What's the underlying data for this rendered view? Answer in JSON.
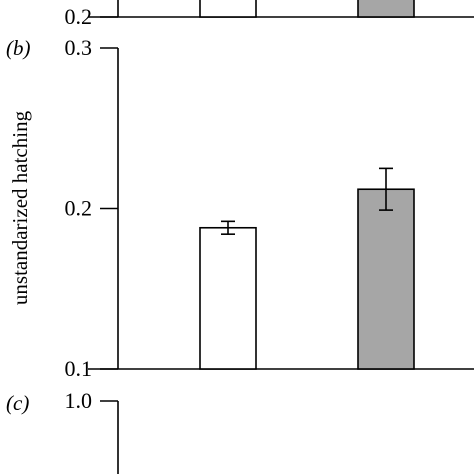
{
  "chart_data": [
    {
      "panel": "a",
      "type": "bar",
      "partial": true,
      "yticks": [
        0.2
      ],
      "tick_labels": [
        "0.2"
      ],
      "bar_colors": [
        "#ffffff",
        "#a6a6a6"
      ]
    },
    {
      "panel": "b",
      "panel_label": "(b)",
      "type": "bar",
      "ylabel": "unstandarized hatching",
      "ylim": [
        0.1,
        0.3
      ],
      "yticks": [
        0.1,
        0.2,
        0.3
      ],
      "tick_labels": [
        "0.1",
        "0.2",
        "0.3"
      ],
      "values": [
        0.188,
        0.212
      ],
      "errors": [
        0.004,
        0.013
      ],
      "bar_colors": [
        "#ffffff",
        "#a6a6a6"
      ],
      "grid": false
    },
    {
      "panel": "c",
      "panel_label": "(c)",
      "type": "bar",
      "partial": true,
      "yticks": [
        1.0
      ],
      "tick_labels": [
        "1.0"
      ]
    }
  ],
  "colors": {
    "axis": "#000000",
    "bar_open": "#ffffff",
    "bar_filled": "#a6a6a6"
  }
}
